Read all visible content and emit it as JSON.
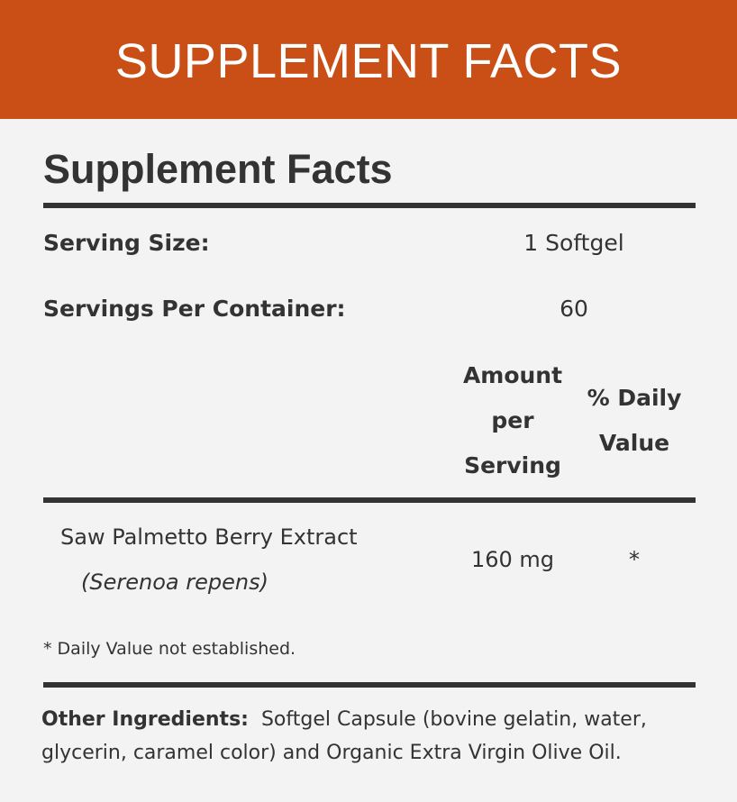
{
  "banner": {
    "title": "SUPPLEMENT FACTS",
    "color": "#c94f16"
  },
  "panel": {
    "title": "Supplement Facts",
    "serving_size_label": "Serving Size:",
    "serving_size_value": "1 Softgel",
    "servings_per_container_label": "Servings Per Container:",
    "servings_per_container_value": "60",
    "columns": {
      "amount": "Amount per Serving",
      "daily_value": "% Daily Value"
    },
    "ingredients": [
      {
        "name": "Saw Palmetto Berry Extract",
        "latin": "(Serenoa repens)",
        "amount": "160 mg",
        "daily_value": "*"
      }
    ],
    "footnote": "* Daily Value not established.",
    "other_ingredients_label": "Other Ingredients:",
    "other_ingredients_text": "Softgel Capsule (bovine gelatin, water, glycerin, caramel color) and Organic Extra Virgin Olive Oil."
  }
}
